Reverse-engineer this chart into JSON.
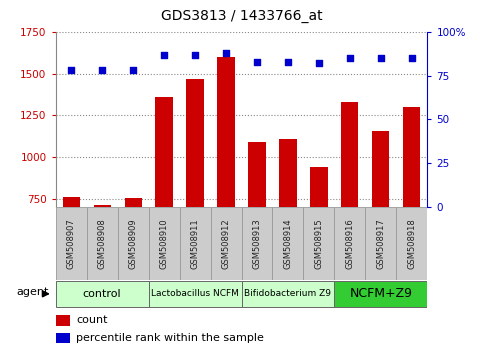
{
  "title": "GDS3813 / 1433766_at",
  "samples": [
    "GSM508907",
    "GSM508908",
    "GSM508909",
    "GSM508910",
    "GSM508911",
    "GSM508912",
    "GSM508913",
    "GSM508914",
    "GSM508915",
    "GSM508916",
    "GSM508917",
    "GSM508918"
  ],
  "counts": [
    762,
    715,
    755,
    1360,
    1465,
    1600,
    1090,
    1110,
    940,
    1330,
    1155,
    1300
  ],
  "percentiles": [
    78,
    78,
    78,
    87,
    87,
    88,
    83,
    83,
    82,
    85,
    85,
    85
  ],
  "bar_color": "#cc0000",
  "dot_color": "#0000cc",
  "ylim_left": [
    700,
    1750
  ],
  "ylim_right": [
    0,
    100
  ],
  "yticks_left": [
    750,
    1000,
    1250,
    1500,
    1750
  ],
  "yticks_right": [
    0,
    25,
    50,
    75,
    100
  ],
  "groups": [
    {
      "label": "control",
      "start": 0,
      "end": 3,
      "color": "#ccffcc",
      "fontsize": 8
    },
    {
      "label": "Lactobacillus NCFM",
      "start": 3,
      "end": 6,
      "color": "#ccffcc",
      "fontsize": 6.5
    },
    {
      "label": "Bifidobacterium Z9",
      "start": 6,
      "end": 9,
      "color": "#ccffcc",
      "fontsize": 6.5
    },
    {
      "label": "NCFM+Z9",
      "start": 9,
      "end": 12,
      "color": "#33cc33",
      "fontsize": 9
    }
  ],
  "agent_label": "agent",
  "legend_count_label": "count",
  "legend_percentile_label": "percentile rank within the sample",
  "bg_color": "#ffffff",
  "grid_color": "#888888",
  "title_fontsize": 10,
  "axis_label_color_left": "#cc0000",
  "axis_label_color_right": "#0000cc",
  "sample_label_color": "#222222",
  "sample_box_color": "#cccccc"
}
